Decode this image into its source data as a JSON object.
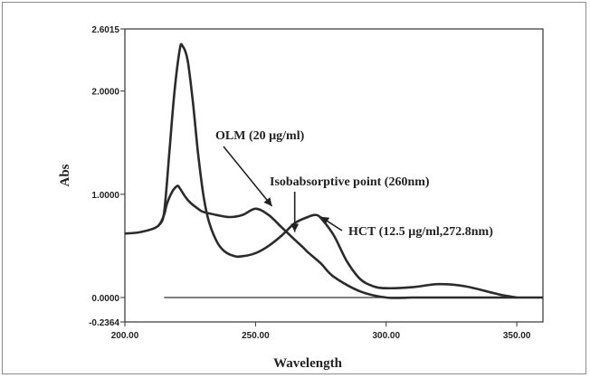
{
  "chart_data": {
    "type": "line",
    "xlabel": "Wavelength",
    "ylabel": "Abs",
    "xlim": [
      200,
      360
    ],
    "ylim": [
      -0.2364,
      2.6015
    ],
    "x_ticks": [
      {
        "value": 200,
        "label": "200.00"
      },
      {
        "value": 250,
        "label": "250.00"
      },
      {
        "value": 300,
        "label": "300.00"
      },
      {
        "value": 350,
        "label": "350.00"
      }
    ],
    "y_ticks": [
      {
        "value": 2.6015,
        "label": "2.6015"
      },
      {
        "value": 2.0,
        "label": "2.0000"
      },
      {
        "value": 1.0,
        "label": "1.0000"
      },
      {
        "value": 0.0,
        "label": "0.0000"
      },
      {
        "value": -0.2364,
        "label": "-0.2364"
      }
    ],
    "grid": false,
    "baseline": 0.0,
    "series": [
      {
        "id": "olm",
        "x": [
          200,
          205,
          210,
          213,
          215,
          216,
          218,
          220,
          221,
          223,
          225,
          228,
          230,
          235,
          240,
          245,
          250,
          255,
          260,
          265,
          268,
          270,
          275,
          280,
          290,
          300,
          310,
          320,
          330,
          340,
          350,
          355,
          360
        ],
        "y": [
          0.62,
          0.63,
          0.66,
          0.7,
          0.8,
          0.9,
          1.02,
          1.08,
          1.06,
          0.98,
          0.92,
          0.86,
          0.83,
          0.8,
          0.78,
          0.8,
          0.86,
          0.8,
          0.68,
          0.56,
          0.49,
          0.44,
          0.33,
          0.2,
          0.06,
          0.0,
          0.0,
          0.0,
          0.0,
          0.0,
          0.0,
          0.0,
          0.0
        ]
      },
      {
        "id": "hct",
        "x": [
          213,
          215,
          217,
          219,
          221,
          222,
          224,
          226,
          228,
          230,
          232,
          235,
          238,
          242,
          245,
          250,
          255,
          260,
          265,
          270,
          272.8,
          275,
          280,
          285,
          290,
          295,
          300,
          310,
          320,
          330,
          340,
          345,
          350
        ],
        "y": [
          0.7,
          0.82,
          1.4,
          2.0,
          2.4,
          2.44,
          2.3,
          1.9,
          1.4,
          1.0,
          0.75,
          0.55,
          0.45,
          0.4,
          0.4,
          0.43,
          0.5,
          0.6,
          0.72,
          0.78,
          0.8,
          0.77,
          0.6,
          0.35,
          0.18,
          0.11,
          0.09,
          0.1,
          0.13,
          0.11,
          0.05,
          0.02,
          0.0
        ]
      }
    ],
    "annotations": [
      {
        "id": "olm",
        "text": "OLM (20 µg/ml)",
        "point_x": 257,
        "point_y": 0.85
      },
      {
        "id": "iso",
        "text": "Isobabsorptive point (260nm)",
        "point_x": 265,
        "point_y": 0.6
      },
      {
        "id": "hct",
        "text": "HCT (12.5 µg/ml,272.8nm)",
        "point_x": 272.8,
        "point_y": 0.8
      }
    ]
  }
}
